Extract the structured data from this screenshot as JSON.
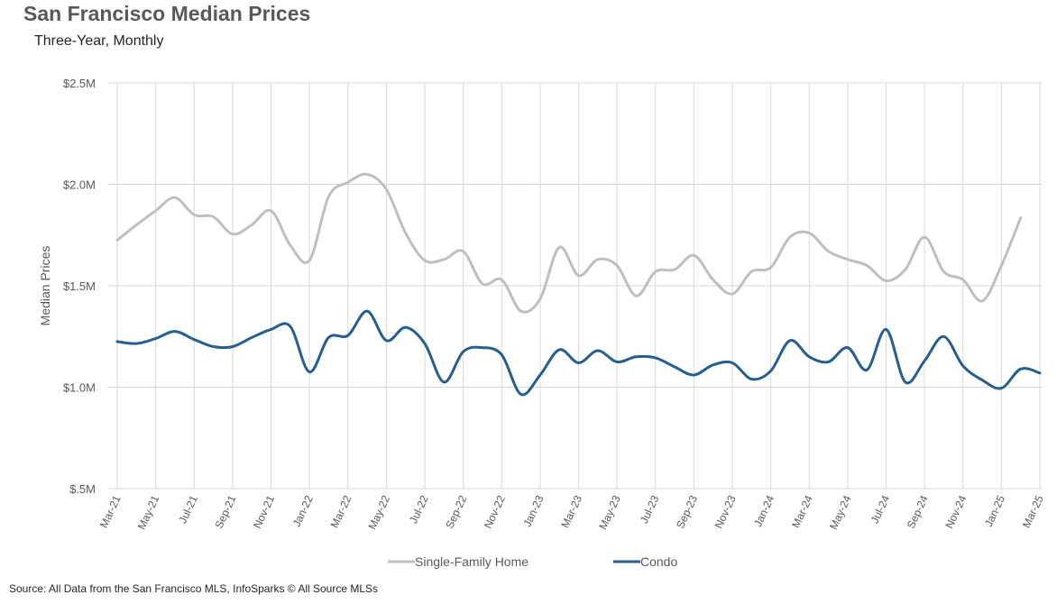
{
  "chart_data": {
    "type": "line",
    "title": "San Francisco Median Prices",
    "subtitle": "Three-Year, Monthly",
    "ylabel": "Median Prices",
    "xlabel": "",
    "source": "Source: All Data from the San Francisco MLS, InfoSparks © All Source MLSs",
    "ylim": [
      500000,
      2500000
    ],
    "y_ticks": [
      500000,
      1000000,
      1500000,
      2000000,
      2500000
    ],
    "y_tick_labels": [
      "$.5M",
      "$1.0M",
      "$1.5M",
      "$2.0M",
      "$2.5M"
    ],
    "x": [
      "Mar-21",
      "Apr-21",
      "May-21",
      "Jun-21",
      "Jul-21",
      "Aug-21",
      "Sep-21",
      "Oct-21",
      "Nov-21",
      "Dec-21",
      "Jan-22",
      "Feb-22",
      "Mar-22",
      "Apr-22",
      "May-22",
      "Jun-22",
      "Jul-22",
      "Aug-22",
      "Sep-22",
      "Oct-22",
      "Nov-22",
      "Dec-22",
      "Jan-23",
      "Feb-23",
      "Mar-23",
      "Apr-23",
      "May-23",
      "Jun-23",
      "Jul-23",
      "Aug-23",
      "Sep-23",
      "Oct-23",
      "Nov-23",
      "Dec-23",
      "Jan-24",
      "Feb-24",
      "Mar-24",
      "Apr-24",
      "May-24",
      "Jun-24",
      "Jul-24",
      "Aug-24",
      "Sep-24",
      "Oct-24",
      "Nov-24",
      "Dec-24",
      "Jan-25",
      "Feb-25",
      "Mar-25"
    ],
    "x_tick_labels": [
      "Mar-21",
      "May-21",
      "Jul-21",
      "Sep-21",
      "Nov-21",
      "Jan-22",
      "Mar-22",
      "May-22",
      "Jul-22",
      "Sep-22",
      "Nov-22",
      "Jan-23",
      "Mar-23",
      "May-23",
      "Jul-23",
      "Sep-23",
      "Nov-23",
      "Jan-24",
      "Mar-24",
      "May-24",
      "Jul-24",
      "Sep-24",
      "Nov-24",
      "Jan-25",
      "Mar-25"
    ],
    "grid": true,
    "legend_position": "bottom",
    "series": [
      {
        "name": "Single-Family Home",
        "color": "#bfbfbf",
        "values": [
          1725000,
          1800000,
          1870000,
          1935000,
          1850000,
          1840000,
          1755000,
          1800000,
          1870000,
          1700000,
          1625000,
          1940000,
          2010000,
          2050000,
          1975000,
          1760000,
          1625000,
          1630000,
          1670000,
          1510000,
          1530000,
          1375000,
          1435000,
          1690000,
          1550000,
          1630000,
          1600000,
          1450000,
          1570000,
          1580000,
          1650000,
          1530000,
          1460000,
          1570000,
          1590000,
          1740000,
          1760000,
          1670000,
          1630000,
          1600000,
          1525000,
          1580000,
          1740000,
          1570000,
          1530000,
          1425000,
          1600000,
          1835000,
          null
        ]
      },
      {
        "name": "Condo",
        "color": "#255e91",
        "values": [
          1225000,
          1215000,
          1240000,
          1275000,
          1235000,
          1200000,
          1200000,
          1245000,
          1285000,
          1300000,
          1075000,
          1245000,
          1255000,
          1375000,
          1230000,
          1295000,
          1215000,
          1025000,
          1175000,
          1195000,
          1160000,
          965000,
          1060000,
          1185000,
          1120000,
          1180000,
          1125000,
          1150000,
          1145000,
          1100000,
          1060000,
          1110000,
          1120000,
          1040000,
          1080000,
          1230000,
          1150000,
          1125000,
          1195000,
          1085000,
          1285000,
          1025000,
          1130000,
          1250000,
          1105000,
          1035000,
          995000,
          1090000,
          1070000
        ]
      }
    ]
  }
}
